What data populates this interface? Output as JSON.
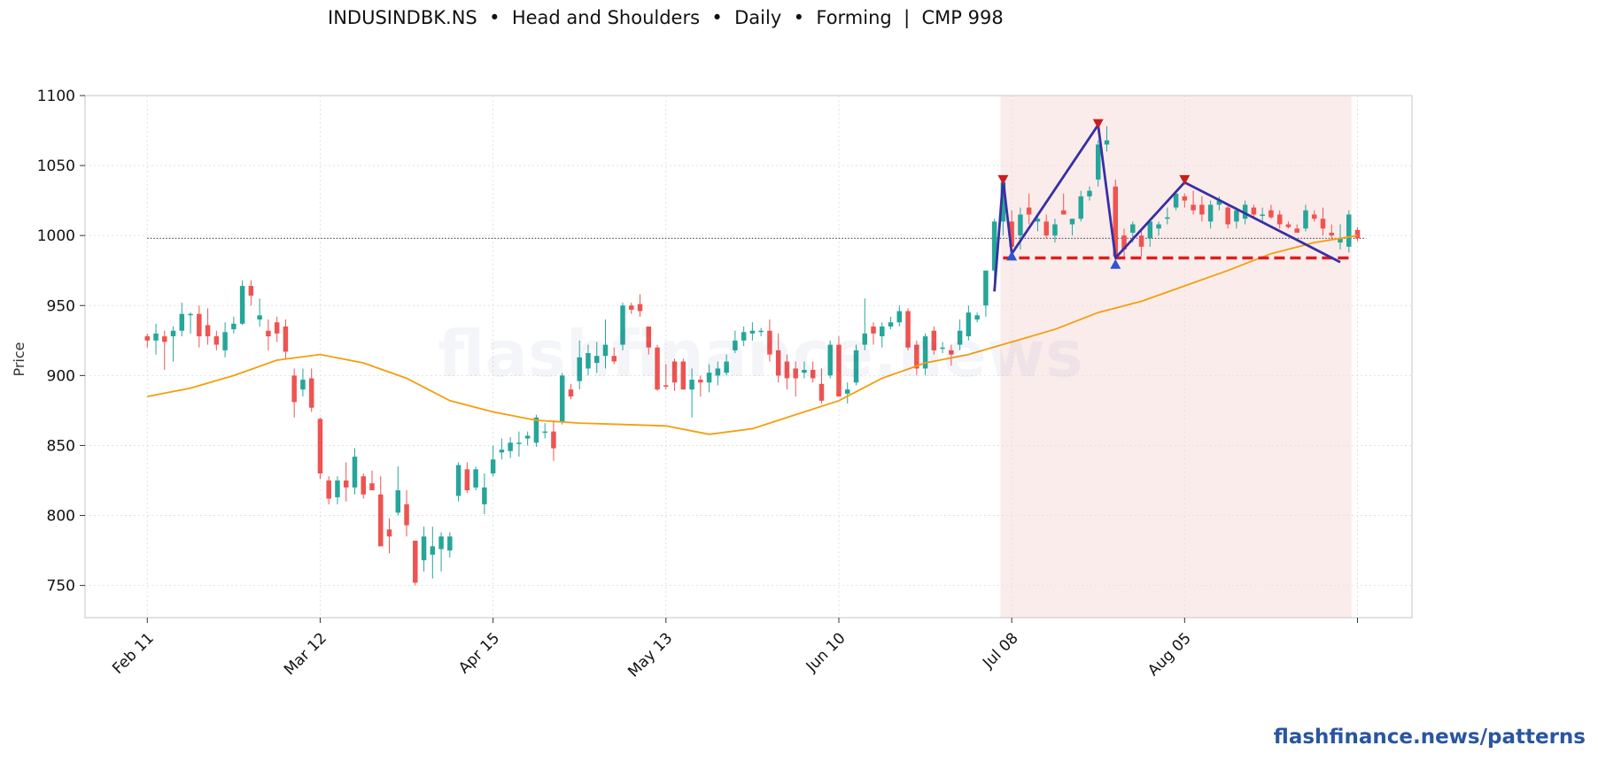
{
  "title": "INDUSINDBK.NS  •  Head and Shoulders  •  Daily  •  Forming  |  CMP 998",
  "watermark": "flashfinance.news",
  "footer_link": "flashfinance.news/patterns",
  "colors": {
    "up": "#26a69a",
    "down": "#ef5350",
    "ma": "#f59e0b",
    "pattern_line": "#3730a3",
    "neckline": "#dc1f1f",
    "peak_marker": "#c81e1e",
    "trough_marker": "#2f54d0",
    "zone_fill": "#f9e6e6",
    "reference_line": "#555555"
  },
  "chart_data": {
    "type": "candlestick",
    "ylabel": "Price",
    "xlabel": "",
    "ylim": [
      727,
      1100
    ],
    "yticks": [
      750,
      800,
      850,
      900,
      950,
      1000,
      1050,
      1100
    ],
    "xticks": [
      {
        "index": 0,
        "label": "Feb 11"
      },
      {
        "index": 20,
        "label": "Mar 12"
      },
      {
        "index": 40,
        "label": "Apr 15"
      },
      {
        "index": 60,
        "label": "May 13"
      },
      {
        "index": 80,
        "label": "Jun 10"
      },
      {
        "index": 100,
        "label": "Jul 08"
      },
      {
        "index": 120,
        "label": "Aug 05"
      },
      {
        "index": 140,
        "label": ""
      }
    ],
    "x_range": [
      -7.2,
      146.3
    ],
    "grid": true,
    "candles_ohlc": [
      [
        928,
        930,
        920,
        925
      ],
      [
        925,
        937,
        915,
        930
      ],
      [
        928,
        932,
        904,
        924
      ],
      [
        928,
        935,
        910,
        932
      ],
      [
        932,
        952,
        928,
        944
      ],
      [
        944,
        945,
        930,
        944
      ],
      [
        944,
        950,
        920,
        928
      ],
      [
        936,
        948,
        922,
        928
      ],
      [
        928,
        932,
        918,
        922
      ],
      [
        918,
        938,
        913,
        931
      ],
      [
        933,
        942,
        930,
        937
      ],
      [
        937,
        968,
        936,
        964
      ],
      [
        964,
        968,
        950,
        957
      ],
      [
        940,
        955,
        935,
        943
      ],
      [
        932,
        940,
        918,
        928
      ],
      [
        938,
        942,
        924,
        930
      ],
      [
        935,
        940,
        912,
        917
      ],
      [
        900,
        905,
        870,
        881
      ],
      [
        890,
        905,
        885,
        897
      ],
      [
        898,
        905,
        874,
        877
      ],
      [
        869,
        870,
        826,
        830
      ],
      [
        825,
        828,
        808,
        812
      ],
      [
        813,
        828,
        808,
        825
      ],
      [
        825,
        838,
        810,
        820
      ],
      [
        820,
        848,
        815,
        842
      ],
      [
        828,
        830,
        812,
        815
      ],
      [
        823,
        832,
        818,
        818
      ],
      [
        815,
        828,
        778,
        778
      ],
      [
        790,
        798,
        773,
        785
      ],
      [
        802,
        835,
        800,
        818
      ],
      [
        808,
        818,
        785,
        793
      ],
      [
        782,
        782,
        750,
        752
      ],
      [
        768,
        792,
        760,
        785
      ],
      [
        772,
        792,
        755,
        778
      ],
      [
        776,
        788,
        760,
        785
      ],
      [
        775,
        788,
        770,
        785
      ],
      [
        814,
        838,
        810,
        836
      ],
      [
        833,
        838,
        816,
        818
      ],
      [
        820,
        835,
        818,
        833
      ],
      [
        808,
        830,
        801,
        820
      ],
      [
        830,
        850,
        828,
        840
      ],
      [
        845,
        855,
        840,
        847
      ],
      [
        846,
        856,
        841,
        852
      ],
      [
        852,
        860,
        842,
        852
      ],
      [
        855,
        860,
        850,
        857
      ],
      [
        852,
        872,
        849,
        870
      ],
      [
        860,
        866,
        855,
        860
      ],
      [
        860,
        868,
        839,
        848
      ],
      [
        867,
        902,
        865,
        900
      ],
      [
        890,
        894,
        883,
        885
      ],
      [
        896,
        925,
        890,
        913
      ],
      [
        905,
        922,
        900,
        916
      ],
      [
        909,
        924,
        902,
        914
      ],
      [
        914,
        940,
        905,
        922
      ],
      [
        914,
        920,
        908,
        910
      ],
      [
        922,
        952,
        918,
        950
      ],
      [
        950,
        952,
        944,
        947
      ],
      [
        951,
        958,
        942,
        946
      ],
      [
        935,
        932,
        915,
        920
      ],
      [
        920,
        922,
        889,
        890
      ],
      [
        893,
        908,
        890,
        892
      ],
      [
        910,
        912,
        889,
        895
      ],
      [
        910,
        912,
        890,
        890
      ],
      [
        890,
        905,
        870,
        897
      ],
      [
        897,
        900,
        885,
        895
      ],
      [
        895,
        908,
        888,
        902
      ],
      [
        900,
        910,
        893,
        905
      ],
      [
        902,
        915,
        900,
        910
      ],
      [
        918,
        932,
        916,
        925
      ],
      [
        925,
        935,
        921,
        931
      ],
      [
        930,
        938,
        925,
        932
      ],
      [
        932,
        934,
        928,
        932
      ],
      [
        932,
        940,
        910,
        915
      ],
      [
        918,
        930,
        895,
        900
      ],
      [
        910,
        915,
        890,
        898
      ],
      [
        905,
        910,
        885,
        898
      ],
      [
        902,
        910,
        898,
        904
      ],
      [
        904,
        910,
        895,
        898
      ],
      [
        894,
        905,
        880,
        882
      ],
      [
        900,
        925,
        898,
        922
      ],
      [
        922,
        928,
        890,
        885
      ],
      [
        887,
        895,
        880,
        890
      ],
      [
        895,
        922,
        893,
        918
      ],
      [
        922,
        955,
        918,
        930
      ],
      [
        935,
        938,
        922,
        930
      ],
      [
        928,
        938,
        920,
        935
      ],
      [
        935,
        942,
        933,
        938
      ],
      [
        938,
        950,
        935,
        946
      ],
      [
        946,
        948,
        918,
        920
      ],
      [
        922,
        925,
        900,
        905
      ],
      [
        905,
        930,
        900,
        928
      ],
      [
        932,
        935,
        915,
        918
      ],
      [
        920,
        924,
        916,
        920
      ],
      [
        918,
        922,
        907,
        915
      ],
      [
        922,
        940,
        918,
        932
      ],
      [
        928,
        950,
        925,
        945
      ],
      [
        940,
        945,
        938,
        943
      ],
      [
        950,
        972,
        942,
        975
      ],
      [
        975,
        1012,
        960,
        1010
      ],
      [
        1010,
        1040,
        1000,
        1038
      ],
      [
        1010,
        1018,
        985,
        992
      ],
      [
        1000,
        1020,
        990,
        1015
      ],
      [
        1020,
        1030,
        1008,
        1015
      ],
      [
        1010,
        1015,
        1003,
        1012
      ],
      [
        1010,
        1015,
        998,
        1000
      ],
      [
        1000,
        1012,
        995,
        1008
      ],
      [
        1018,
        1030,
        1015,
        1015
      ],
      [
        1008,
        1012,
        1000,
        1012
      ],
      [
        1012,
        1032,
        1010,
        1028
      ],
      [
        1028,
        1035,
        1025,
        1032
      ],
      [
        1040,
        1068,
        1035,
        1065
      ],
      [
        1065,
        1078,
        1060,
        1068
      ],
      [
        1035,
        1040,
        990,
        985
      ],
      [
        1000,
        1005,
        985,
        990
      ],
      [
        1002,
        1010,
        995,
        1008
      ],
      [
        1000,
        1005,
        985,
        992
      ],
      [
        998,
        1012,
        992,
        1010
      ],
      [
        1005,
        1010,
        1000,
        1008
      ],
      [
        1012,
        1020,
        1008,
        1013
      ],
      [
        1020,
        1032,
        1018,
        1030
      ],
      [
        1028,
        1030,
        1020,
        1025
      ],
      [
        1022,
        1032,
        1015,
        1018
      ],
      [
        1022,
        1028,
        1010,
        1015
      ],
      [
        1010,
        1025,
        1005,
        1022
      ],
      [
        1022,
        1028,
        1018,
        1025
      ],
      [
        1020,
        1022,
        1005,
        1008
      ],
      [
        1010,
        1020,
        1005,
        1018
      ],
      [
        1012,
        1025,
        1008,
        1022
      ],
      [
        1020,
        1022,
        1012,
        1015
      ],
      [
        1015,
        1020,
        1010,
        1015
      ],
      [
        1018,
        1022,
        1012,
        1013
      ],
      [
        1015,
        1018,
        1005,
        1008
      ],
      [
        1008,
        1010,
        1005,
        1006
      ],
      [
        1005,
        1008,
        1002,
        1002
      ],
      [
        1005,
        1022,
        1003,
        1018
      ],
      [
        1015,
        1018,
        1010,
        1012
      ],
      [
        1012,
        1020,
        1000,
        1005
      ],
      [
        1002,
        1008,
        998,
        1000
      ],
      [
        995,
        1008,
        990,
        998
      ],
      [
        992,
        1018,
        988,
        1015
      ],
      [
        1004,
        1006,
        996,
        998
      ]
    ],
    "moving_average": [
      [
        0,
        885
      ],
      [
        5,
        891
      ],
      [
        10,
        900
      ],
      [
        15,
        911
      ],
      [
        20,
        915
      ],
      [
        25,
        909
      ],
      [
        30,
        898
      ],
      [
        35,
        882
      ],
      [
        40,
        874
      ],
      [
        45,
        868
      ],
      [
        50,
        866
      ],
      [
        55,
        865
      ],
      [
        60,
        864
      ],
      [
        65,
        858
      ],
      [
        70,
        862
      ],
      [
        75,
        872
      ],
      [
        80,
        882
      ],
      [
        85,
        898
      ],
      [
        90,
        909
      ],
      [
        95,
        915
      ],
      [
        100,
        924
      ],
      [
        105,
        933
      ],
      [
        110,
        945
      ],
      [
        115,
        953
      ],
      [
        120,
        964
      ],
      [
        125,
        975
      ],
      [
        130,
        987
      ],
      [
        135,
        995
      ],
      [
        140,
        1000
      ]
    ],
    "reference_line": {
      "value": 998,
      "x_start": 0,
      "x_end": 141
    },
    "pattern_zone": {
      "x_start": 99,
      "x_end": 139
    },
    "pattern_path": [
      [
        98,
        960
      ],
      [
        99,
        1040
      ],
      [
        100,
        987
      ],
      [
        110,
        1079
      ],
      [
        112,
        984
      ],
      [
        120,
        1038
      ],
      [
        138,
        981
      ]
    ],
    "peaks": [
      [
        99,
        1040
      ],
      [
        110,
        1080
      ],
      [
        120,
        1040
      ]
    ],
    "troughs": [
      [
        100,
        986
      ],
      [
        112,
        980
      ]
    ],
    "neckline": {
      "value": 984,
      "x_start": 99,
      "x_end": 139
    }
  }
}
